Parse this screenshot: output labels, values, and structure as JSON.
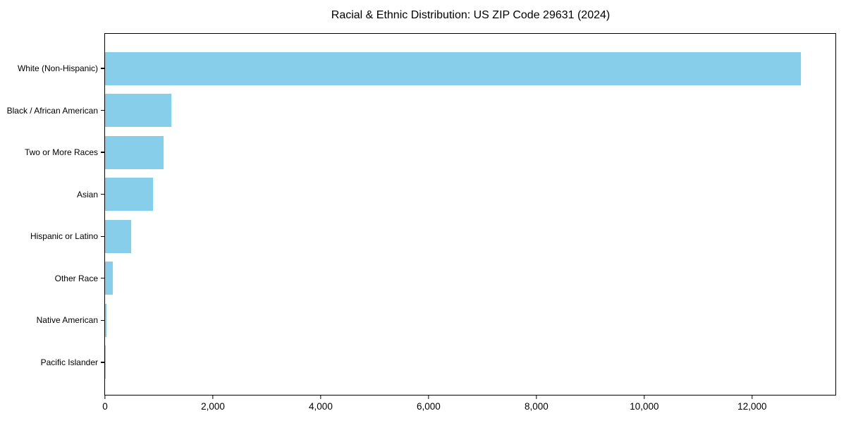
{
  "chart_data": {
    "type": "bar",
    "orientation": "horizontal",
    "title": "Racial & Ethnic Distribution: US ZIP Code 29631 (2024)",
    "categories": [
      "White (Non-Hispanic)",
      "Black / African American",
      "Two or More Races",
      "Asian",
      "Hispanic or Latino",
      "Other Race",
      "Native American",
      "Pacific Islander"
    ],
    "values": [
      12900,
      1230,
      1090,
      885,
      480,
      145,
      20,
      8
    ],
    "bar_color": "#87CEEB",
    "xlabel": "",
    "ylabel": "",
    "xlim": [
      0,
      13545
    ],
    "xticks": [
      0,
      2000,
      4000,
      6000,
      8000,
      10000,
      12000
    ],
    "xtick_labels": [
      "0",
      "2,000",
      "4,000",
      "6,000",
      "8,000",
      "10,000",
      "12,000"
    ],
    "grid": false,
    "legend": null,
    "spine_color": "#000000",
    "background_color": "#ffffff"
  }
}
